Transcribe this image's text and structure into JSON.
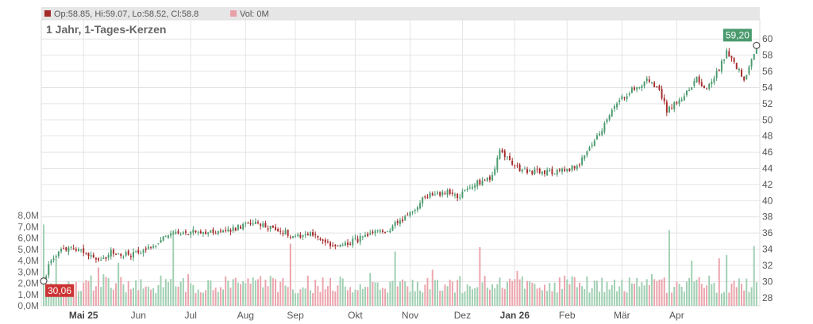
{
  "header": {
    "ohlc_label": "Op:58.85, Hi:59.07, Lo:58.52, Cl:58.8",
    "vol_label": "Vol: 0M",
    "price_color": "#a52a2a",
    "vol_color": "#e8a0a8"
  },
  "chart_data": {
    "type": "candlestick",
    "title": "1 Jahr, 1-Tages-Kerzen",
    "price_axis": {
      "min": 27,
      "max": 61,
      "ticks": [
        28,
        30,
        32,
        34,
        36,
        38,
        40,
        42,
        44,
        46,
        48,
        50,
        52,
        54,
        56,
        58,
        60
      ]
    },
    "volume_axis": {
      "min": 0,
      "max": 8.0,
      "unit": "M",
      "ticks": [
        "0,0M",
        "1,0M",
        "2,0M",
        "3,0M",
        "4,0M",
        "5,0M",
        "6,0M",
        "7,0M",
        "8,0M"
      ]
    },
    "x_labels": [
      {
        "label": "Mai 25",
        "bold": true
      },
      {
        "label": "Jun",
        "bold": false
      },
      {
        "label": "Jul",
        "bold": false
      },
      {
        "label": "Aug",
        "bold": false
      },
      {
        "label": "Sep",
        "bold": false
      },
      {
        "label": "Okt",
        "bold": false
      },
      {
        "label": "Nov",
        "bold": false
      },
      {
        "label": "Dez",
        "bold": false
      },
      {
        "label": "Jan 26",
        "bold": true
      },
      {
        "label": "Feb",
        "bold": false
      },
      {
        "label": "Mär",
        "bold": false
      },
      {
        "label": "Apr",
        "bold": false
      }
    ],
    "close_anchors": [
      [
        0,
        30.06
      ],
      [
        3,
        32.8
      ],
      [
        8,
        34.0
      ],
      [
        14,
        34.2
      ],
      [
        18,
        33.3
      ],
      [
        24,
        32.6
      ],
      [
        27,
        33.6
      ],
      [
        35,
        33.3
      ],
      [
        42,
        34.2
      ],
      [
        50,
        35.7
      ],
      [
        58,
        36.1
      ],
      [
        66,
        36.1
      ],
      [
        75,
        36.3
      ],
      [
        83,
        37.3
      ],
      [
        92,
        36.6
      ],
      [
        100,
        35.7
      ],
      [
        108,
        35.9
      ],
      [
        116,
        34.2
      ],
      [
        124,
        35.0
      ],
      [
        132,
        35.8
      ],
      [
        138,
        36.4
      ],
      [
        146,
        38.2
      ],
      [
        154,
        40.7
      ],
      [
        162,
        41.0
      ],
      [
        166,
        40.3
      ],
      [
        172,
        42.0
      ],
      [
        180,
        43.0
      ],
      [
        183,
        46.2
      ],
      [
        190,
        44.0
      ],
      [
        198,
        43.5
      ],
      [
        206,
        43.6
      ],
      [
        214,
        44.2
      ],
      [
        222,
        47.8
      ],
      [
        230,
        52.0
      ],
      [
        236,
        53.8
      ],
      [
        243,
        55.0
      ],
      [
        247,
        53.5
      ],
      [
        250,
        51.2
      ],
      [
        256,
        52.5
      ],
      [
        262,
        55.0
      ],
      [
        266,
        53.6
      ],
      [
        270,
        55.8
      ],
      [
        274,
        58.3
      ],
      [
        278,
        56.6
      ],
      [
        281,
        55.0
      ],
      [
        284,
        57.4
      ],
      [
        286,
        59.2
      ]
    ],
    "volume_spikes": [
      [
        0,
        7.2
      ],
      [
        5,
        4.1
      ],
      [
        22,
        3.4
      ],
      [
        24,
        2.8
      ],
      [
        30,
        3.8
      ],
      [
        52,
        6.6
      ],
      [
        58,
        2.8
      ],
      [
        73,
        2.6
      ],
      [
        99,
        5.5
      ],
      [
        131,
        2.9
      ],
      [
        141,
        4.8
      ],
      [
        156,
        3.2
      ],
      [
        175,
        5.2
      ],
      [
        190,
        3.1
      ],
      [
        235,
        2.5
      ],
      [
        244,
        2.8
      ],
      [
        251,
        6.7
      ],
      [
        260,
        4.0
      ],
      [
        271,
        4.2
      ],
      [
        274,
        4.5
      ],
      [
        285,
        5.3
      ]
    ],
    "last_price": {
      "label": "59,20",
      "value": 59.2,
      "color": "#4a9a6e"
    },
    "first_price": {
      "label": "30,06",
      "value": 30.06,
      "color": "#cc3333"
    },
    "up_color": "#4a9a6e",
    "down_color": "#a52a2a",
    "vol_up_color": "#9fcfb1",
    "vol_down_color": "#eba3ac",
    "grid": true
  }
}
